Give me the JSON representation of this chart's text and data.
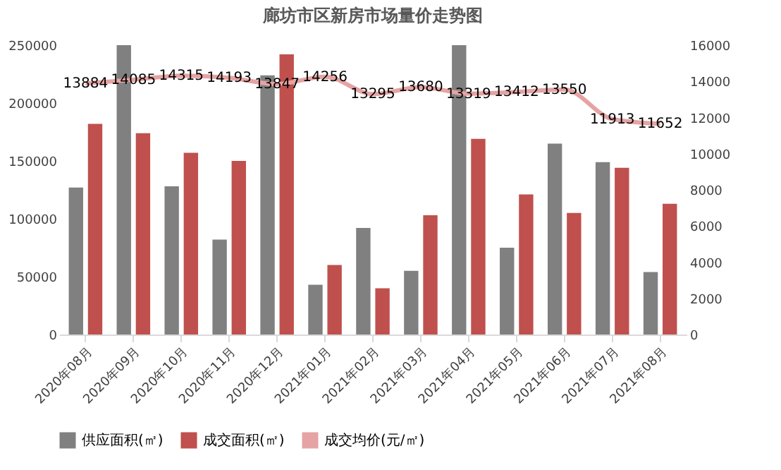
{
  "chart_data": {
    "type": "bar",
    "title": "廊坊市区新房市场量价走势图",
    "categories": [
      "2020年08月",
      "2020年09月",
      "2020年10月",
      "2020年11月",
      "2020年12月",
      "2021年01月",
      "2021年02月",
      "2021年03月",
      "2021年04月",
      "2021年05月",
      "2021年06月",
      "2021年07月",
      "2021年08月"
    ],
    "series": [
      {
        "name": "供应面积(㎡)",
        "type": "bar",
        "color": "#808080",
        "values": [
          127000,
          250000,
          128000,
          82000,
          224000,
          43000,
          92000,
          55000,
          250000,
          75000,
          165000,
          149000,
          54000
        ]
      },
      {
        "name": "成交面积(㎡)",
        "type": "bar",
        "color": "#c0504d",
        "values": [
          182000,
          174000,
          157000,
          150000,
          242000,
          60000,
          40000,
          103000,
          169000,
          121000,
          105000,
          144000,
          113000
        ]
      },
      {
        "name": "成交均价(元/㎡)",
        "type": "line",
        "axis": "y2",
        "color": "#e6a3a3",
        "values": [
          13884,
          14085,
          14315,
          14193,
          13847,
          14256,
          13295,
          13680,
          13319,
          13412,
          13550,
          11913,
          11652
        ],
        "value_labels": [
          "13884",
          "14085",
          "14315",
          "14193",
          "13847",
          "14256",
          "13295",
          "13680",
          "13319",
          "13412",
          "13550",
          "11913",
          "11652"
        ]
      }
    ],
    "ylim": [
      0,
      250000
    ],
    "yticks": [
      0,
      50000,
      100000,
      150000,
      200000,
      250000
    ],
    "y2lim": [
      0,
      16000
    ],
    "y2ticks": [
      0,
      2000,
      4000,
      6000,
      8000,
      10000,
      12000,
      14000,
      16000
    ],
    "grid": false,
    "legend": "bottom"
  }
}
